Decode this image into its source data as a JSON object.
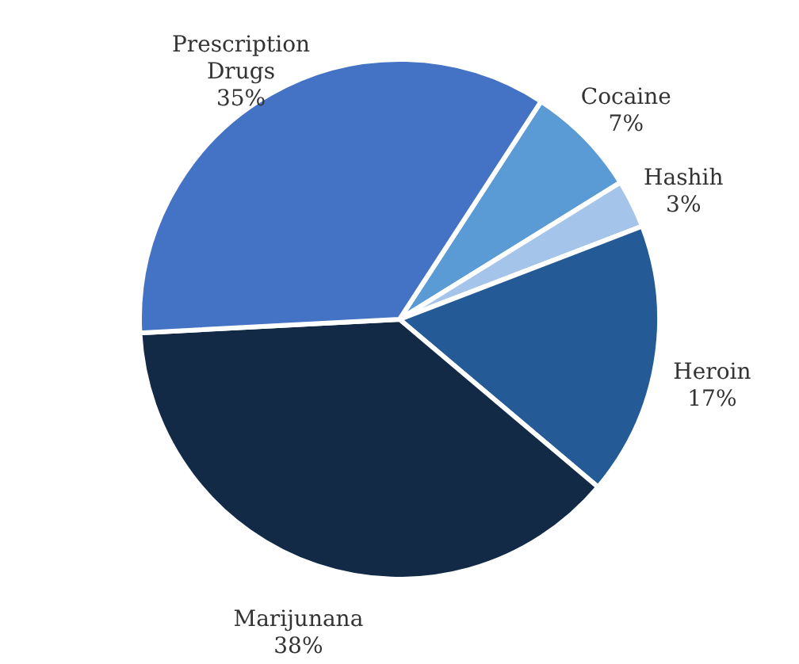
{
  "chart_data": {
    "type": "pie",
    "categories": [
      "Cocaine",
      "Hashih",
      "Heroin",
      "Marijunana",
      "Prescription Drugs"
    ],
    "values": [
      7,
      3,
      17,
      38,
      35
    ],
    "value_labels": [
      "7%",
      "3%",
      "17%",
      "38%",
      "35%"
    ],
    "colors": [
      "#5b9bd5",
      "#a5c4ea",
      "#245a96",
      "#132a47",
      "#4472c4"
    ]
  }
}
